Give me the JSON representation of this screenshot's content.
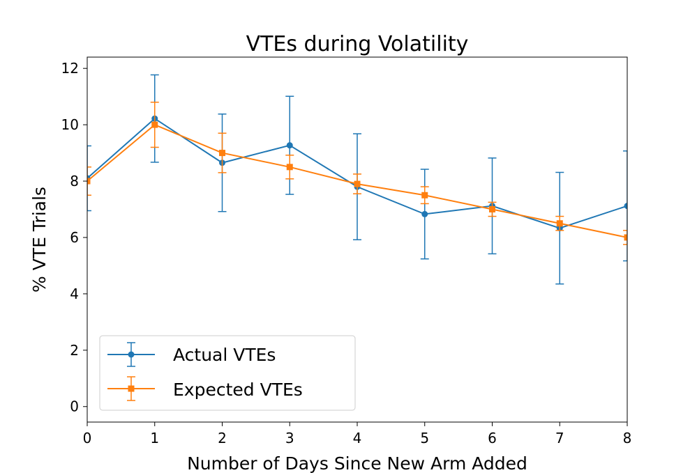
{
  "chart_data": {
    "type": "line",
    "title": "VTEs during Volatility",
    "xlabel": "Number of Days Since New Arm Added",
    "ylabel": "% VTE Trials",
    "xlim": [
      0,
      8
    ],
    "ylim": [
      -0.55,
      12.4
    ],
    "xticks": [
      "0",
      "1",
      "2",
      "3",
      "4",
      "5",
      "6",
      "7",
      "8"
    ],
    "yticks": [
      "0",
      "2",
      "4",
      "6",
      "8",
      "10",
      "12"
    ],
    "grid": false,
    "legend_position": "lower-left",
    "series": [
      {
        "name": "Actual VTEs",
        "color": "#1f77b4",
        "marker": "circle",
        "x": [
          0,
          1,
          2,
          3,
          4,
          5,
          6,
          7,
          8
        ],
        "y": [
          8.1,
          10.22,
          8.65,
          9.27,
          7.8,
          6.83,
          7.12,
          6.33,
          7.12
        ],
        "err": [
          1.15,
          1.55,
          1.73,
          1.74,
          1.88,
          1.59,
          1.7,
          1.98,
          1.95
        ]
      },
      {
        "name": "Expected VTEs",
        "color": "#ff7f0e",
        "marker": "square",
        "x": [
          0,
          1,
          2,
          3,
          4,
          5,
          6,
          7,
          8
        ],
        "y": [
          8.0,
          10.0,
          9.0,
          8.5,
          7.9,
          7.5,
          7.0,
          6.5,
          6.0
        ],
        "err": [
          0.5,
          0.8,
          0.7,
          0.42,
          0.35,
          0.3,
          0.25,
          0.25,
          0.25
        ]
      }
    ]
  }
}
